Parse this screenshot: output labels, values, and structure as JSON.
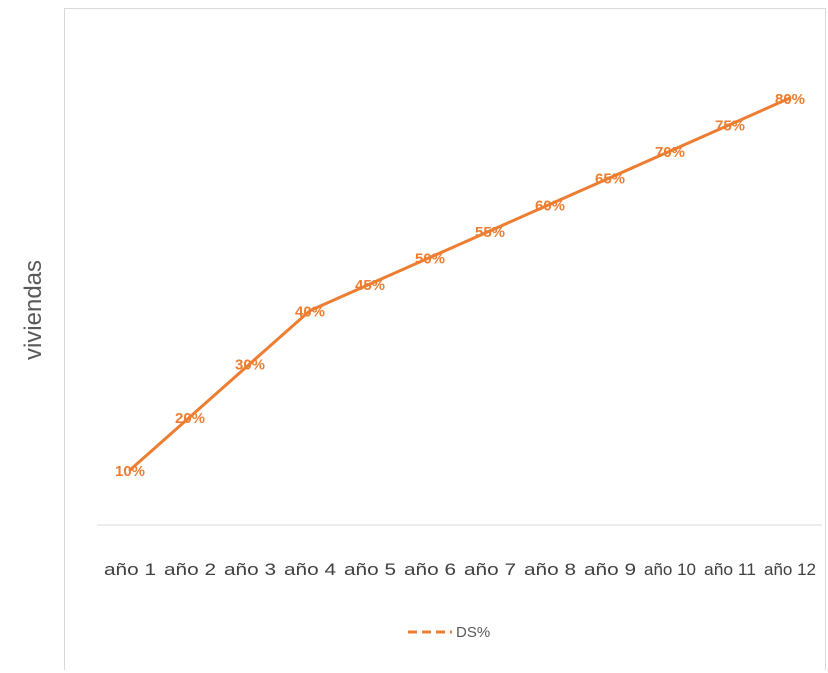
{
  "chart_data": {
    "type": "line",
    "title": "",
    "xlabel": "",
    "ylabel": "viviendas",
    "categories": [
      "año 1",
      "año 2",
      "año 3",
      "año 4",
      "año 5",
      "año 6",
      "año 7",
      "año 8",
      "año 9",
      "año 10",
      "año 11",
      "año 12"
    ],
    "series": [
      {
        "name": "DS%",
        "values": [
          10,
          20,
          30,
          40,
          45,
          50,
          55,
          60,
          65,
          70,
          75,
          80
        ],
        "labels": [
          "10%",
          "20%",
          "30%",
          "40%",
          "45%",
          "50%",
          "55%",
          "60%",
          "65%",
          "70%",
          "75%",
          "80%"
        ],
        "color": "#ED7D31",
        "dashed": true
      }
    ],
    "ylim": [
      0,
      90
    ],
    "grid": false,
    "legend": "bottom"
  }
}
